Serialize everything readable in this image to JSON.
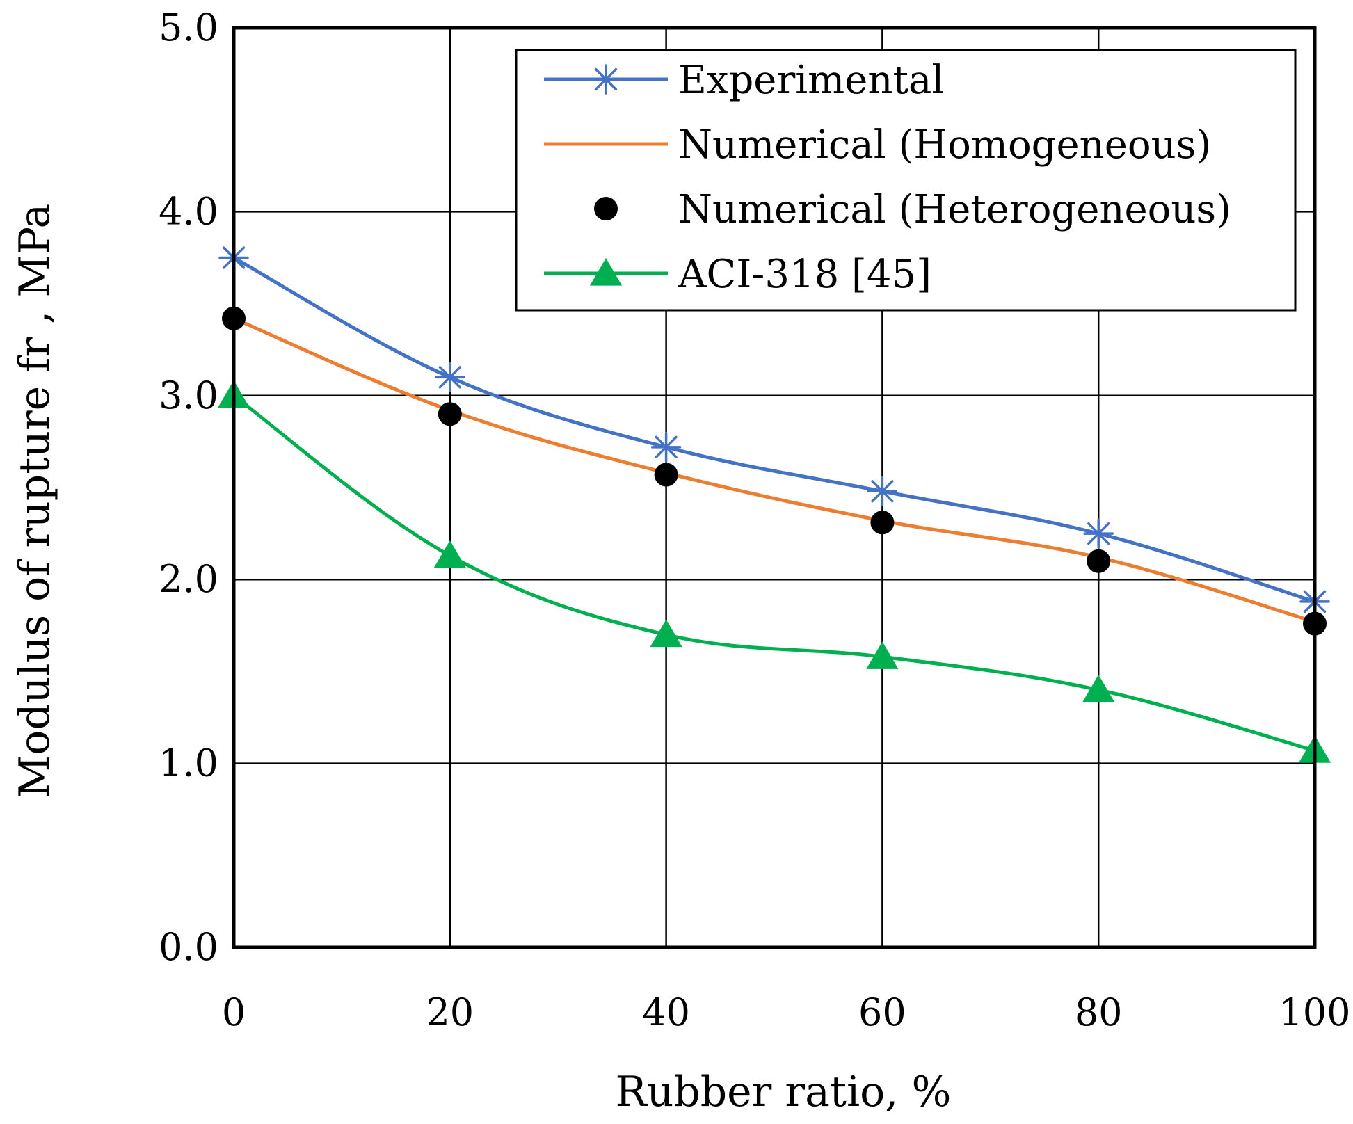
{
  "chart_data": {
    "type": "line",
    "title": "",
    "xlabel": "Rubber ratio, %",
    "ylabel": "Modulus of rupture fr , MPa",
    "x": [
      0,
      20,
      40,
      60,
      80,
      100
    ],
    "xlim": [
      0,
      100
    ],
    "ylim": [
      0,
      5
    ],
    "xticks": [
      "0",
      "20",
      "40",
      "60",
      "80",
      "100"
    ],
    "yticks": [
      "0.0",
      "1.0",
      "2.0",
      "3.0",
      "4.0",
      "5.0"
    ],
    "grid": true,
    "legend_position": "top-right",
    "series": [
      {
        "name": "Experimental",
        "values": [
          3.75,
          3.1,
          2.72,
          2.48,
          2.25,
          1.88
        ],
        "color": "#4472C4",
        "marker": "asterisk",
        "line": true
      },
      {
        "name": "Numerical (Homogeneous)",
        "values": [
          3.42,
          2.92,
          2.58,
          2.32,
          2.12,
          1.77
        ],
        "color": "#ED7D31",
        "marker": "none",
        "line": true
      },
      {
        "name": "Numerical (Heterogeneous)",
        "values": [
          3.42,
          2.9,
          2.57,
          2.31,
          2.1,
          1.76
        ],
        "color": "#000000",
        "marker": "circle",
        "line": false
      },
      {
        "name": "ACI-318 [45]",
        "values": [
          3.0,
          2.13,
          1.7,
          1.58,
          1.4,
          1.07
        ],
        "color": "#00B050",
        "marker": "triangle",
        "line": true
      }
    ]
  }
}
